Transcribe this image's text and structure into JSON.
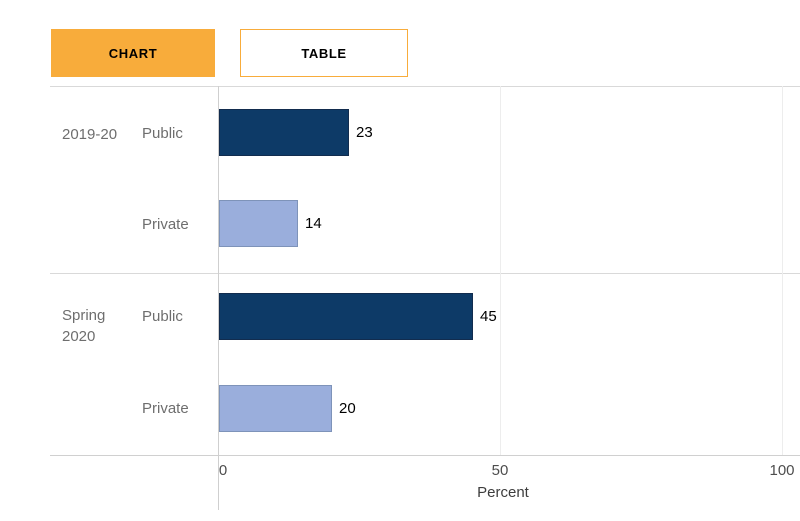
{
  "view_toggle": {
    "chart_label": "CHART",
    "table_label": "TABLE",
    "selected": "CHART"
  },
  "colors": {
    "accent_orange": "#F8AC3B",
    "public_bar": "#0D3A67",
    "public_bar_border": "#122C4E",
    "private_bar": "#9AAEDC",
    "private_bar_border": "#7E93B9"
  },
  "chart_data": {
    "type": "bar",
    "orientation": "horizontal",
    "title": "",
    "xlabel": "Percent",
    "xlim": [
      0,
      100
    ],
    "xticks": [
      "0",
      "50",
      "100"
    ],
    "grid": true,
    "legend": false,
    "value_labels": true,
    "groups": [
      {
        "label": "2019-20",
        "rows": [
          {
            "category": "Public",
            "value": 23,
            "color": "#0D3A67"
          },
          {
            "category": "Private",
            "value": 14,
            "color": "#9AAEDC"
          }
        ]
      },
      {
        "label": "Spring 2020",
        "rows": [
          {
            "category": "Public",
            "value": 45,
            "color": "#0D3A67"
          },
          {
            "category": "Private",
            "value": 20,
            "color": "#9AAEDC"
          }
        ]
      }
    ]
  }
}
